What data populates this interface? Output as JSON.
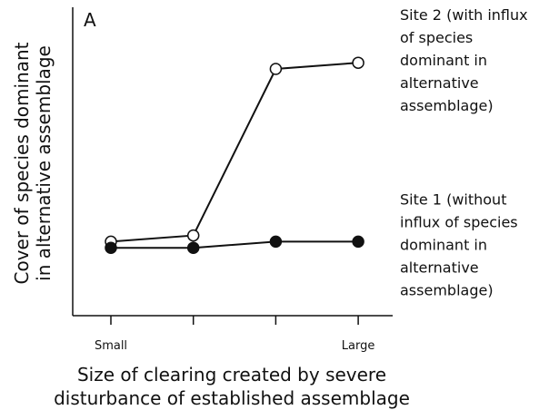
{
  "chart_data": {
    "type": "line",
    "annotation": "A",
    "categories": [
      "Small",
      null,
      null,
      "Large"
    ],
    "series": [
      {
        "name": "Site 2 (with influx of species dominant in alternative assemblage)",
        "color": "#111111",
        "marker": "open",
        "values": [
          24,
          26,
          80,
          82
        ]
      },
      {
        "name": "Site 1 (without influx of species dominant in alternative assemblage)",
        "color": "#111111",
        "marker": "filled",
        "values": [
          22,
          22,
          24,
          24
        ]
      }
    ],
    "ylim": [
      0,
      100
    ],
    "xlabel": [
      "Size of clearing created by severe",
      "disturbance of established assemblage"
    ],
    "ylabel": [
      "Cover of species dominant",
      "in alternative assemblage"
    ]
  }
}
